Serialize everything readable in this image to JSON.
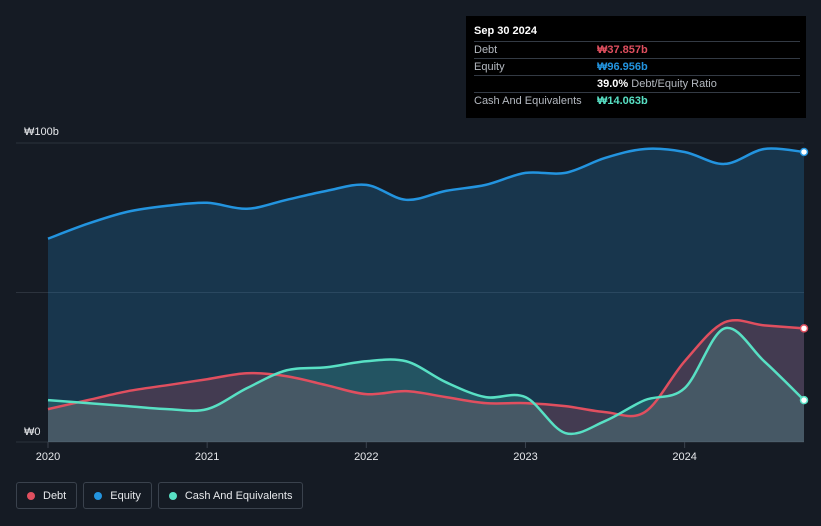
{
  "tooltip": {
    "date": "Sep 30 2024",
    "rows": [
      {
        "label": "Debt",
        "value": "₩37.857b",
        "color": "#e04f5f"
      },
      {
        "label": "Equity",
        "value": "₩96.956b",
        "color": "#2394df"
      },
      {
        "label": "",
        "value": "39.0%",
        "suffix": "Debt/Equity Ratio",
        "color": "#ffffff"
      },
      {
        "label": "Cash And Equivalents",
        "value": "₩14.063b",
        "color": "#58e0c4"
      }
    ]
  },
  "legend": [
    {
      "label": "Debt",
      "color": "#e04f5f"
    },
    {
      "label": "Equity",
      "color": "#2394df"
    },
    {
      "label": "Cash And Equivalents",
      "color": "#58e0c4"
    }
  ],
  "chart_data": {
    "type": "area",
    "title": "",
    "xlabel": "",
    "ylabel": "",
    "ylim": [
      0,
      100
    ],
    "xlim": [
      2020.0,
      2024.75
    ],
    "y_tick_labels": [
      "₩100b",
      "₩0"
    ],
    "y_ticks": [
      100,
      0
    ],
    "x_tick_labels": [
      "2020",
      "2021",
      "2022",
      "2023",
      "2024"
    ],
    "x_ticks": [
      2020,
      2021,
      2022,
      2023,
      2024
    ],
    "series": [
      {
        "name": "Equity",
        "color": "#2394df",
        "x": [
          2020.0,
          2020.25,
          2020.5,
          2020.75,
          2021.0,
          2021.25,
          2021.5,
          2021.75,
          2022.0,
          2022.25,
          2022.5,
          2022.75,
          2023.0,
          2023.25,
          2023.5,
          2023.75,
          2024.0,
          2024.25,
          2024.5,
          2024.75
        ],
        "values": [
          68,
          73,
          77,
          79,
          80,
          78,
          81,
          84,
          86,
          81,
          84,
          86,
          90,
          90,
          95,
          98,
          97,
          93,
          98,
          97
        ]
      },
      {
        "name": "Debt",
        "color": "#e04f5f",
        "x": [
          2020.0,
          2020.25,
          2020.5,
          2020.75,
          2021.0,
          2021.25,
          2021.5,
          2021.75,
          2022.0,
          2022.25,
          2022.5,
          2022.75,
          2023.0,
          2023.25,
          2023.5,
          2023.75,
          2024.0,
          2024.25,
          2024.5,
          2024.75
        ],
        "values": [
          11,
          14,
          17,
          19,
          21,
          23,
          22,
          19,
          16,
          17,
          15,
          13,
          13,
          12,
          10,
          10,
          27,
          40,
          39,
          38
        ]
      },
      {
        "name": "Cash And Equivalents",
        "color": "#58e0c4",
        "x": [
          2020.0,
          2020.25,
          2020.5,
          2020.75,
          2021.0,
          2021.25,
          2021.5,
          2021.75,
          2022.0,
          2022.25,
          2022.5,
          2022.75,
          2023.0,
          2023.25,
          2023.5,
          2023.75,
          2024.0,
          2024.25,
          2024.5,
          2024.75
        ],
        "values": [
          14,
          13,
          12,
          11,
          11,
          18,
          24,
          25,
          27,
          27,
          20,
          15,
          15,
          3,
          7,
          14,
          18,
          38,
          27,
          14
        ]
      }
    ]
  }
}
